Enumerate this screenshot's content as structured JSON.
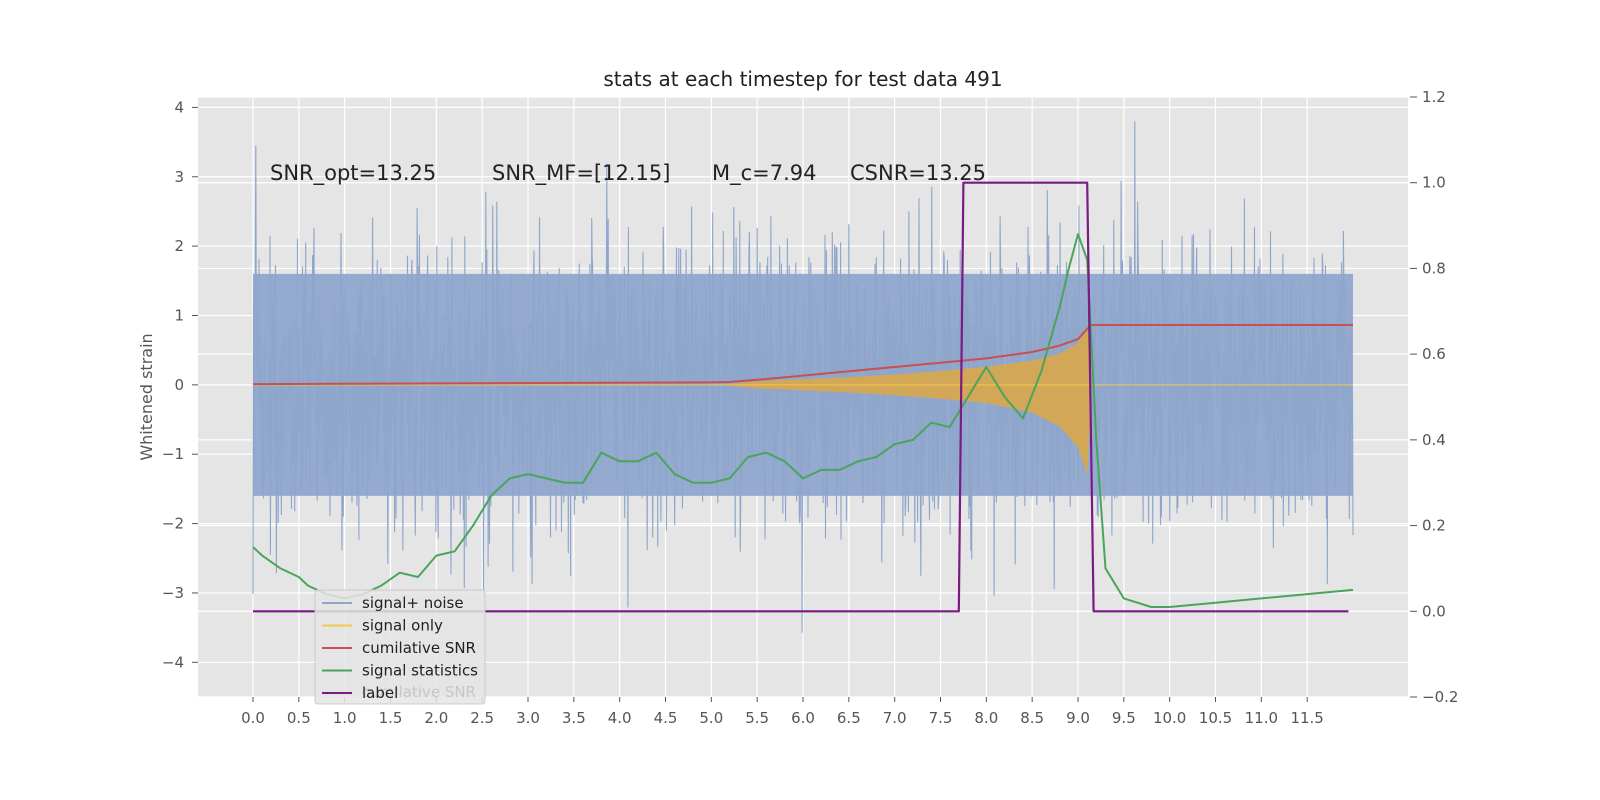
{
  "chart_data": {
    "type": "line",
    "title": "stats at each timestep for test data 491",
    "xlabel": "",
    "ylabel": "Whitened strain",
    "y2label": "",
    "xlim": [
      -0.6,
      12.6
    ],
    "ylim": [
      -4.5,
      4.15
    ],
    "y2lim": [
      -0.2,
      1.2
    ],
    "grid": true,
    "x_ticks": [
      0.0,
      0.5,
      1.0,
      1.5,
      2.0,
      2.5,
      3.0,
      3.5,
      4.0,
      4.5,
      5.0,
      5.5,
      6.0,
      6.5,
      7.0,
      7.5,
      8.0,
      8.5,
      9.0,
      9.5,
      10.0,
      10.5,
      11.0,
      11.5
    ],
    "x_tick_labels": [
      "0.0",
      "0.5",
      "1.0",
      "1.5",
      "2.0",
      "2.5",
      "3.0",
      "3.5",
      "4.0",
      "4.5",
      "5.0",
      "5.5",
      "6.0",
      "6.5",
      "7.0",
      "7.5",
      "8.0",
      "8.5",
      "9.0",
      "9.5",
      "10.0",
      "10.5",
      "11.0",
      "11.5"
    ],
    "y_ticks": [
      -4,
      -3,
      -2,
      -1,
      0,
      1,
      2,
      3,
      4
    ],
    "y_tick_labels": [
      "−4",
      "−3",
      "−2",
      "−1",
      "0",
      "1",
      "2",
      "3",
      "4"
    ],
    "y2_ticks": [
      -0.2,
      0.0,
      0.2,
      0.4,
      0.6,
      0.8,
      1.0,
      1.2
    ],
    "y2_tick_labels": [
      "−0.2",
      "0.0",
      "0.2",
      "0.4",
      "0.6",
      "0.8",
      "1.0",
      "1.2"
    ],
    "annotations": {
      "snr_opt": "SNR_opt=13.25",
      "snr_mf": "SNR_MF=[12.15]",
      "mc": "M_c=7.94",
      "csnr": "CSNR=13.25"
    },
    "legend": {
      "position": "lower-left",
      "entries": [
        "signal+ noise",
        "signal only",
        "cumilative SNR",
        "signal statistics",
        "label"
      ],
      "ghost_text": "cumilative SNR"
    },
    "colors": {
      "noise": "#8fa6cc",
      "signal": "#d9a74a",
      "signal_line": "#f2c84b",
      "cumulative": "#c9504f",
      "statistics": "#4aa55a",
      "label": "#7a1a84",
      "grid": "#ffffff",
      "plot_bg": "#e5e5e5",
      "tick": "#555555"
    },
    "series": [
      {
        "name": "signal+ noise",
        "axis": "left",
        "style": "dense noise band",
        "x_range": [
          0.0,
          12.0
        ],
        "envelope_core": [
          -1.6,
          1.6
        ],
        "spike_range": [
          -4.1,
          3.8
        ]
      },
      {
        "name": "signal only",
        "axis": "left",
        "style": "chirp envelope",
        "x": [
          0.0,
          5.1,
          5.5,
          6.0,
          6.5,
          7.0,
          7.5,
          8.0,
          8.5,
          8.8,
          9.0,
          9.1,
          9.15,
          12.0
        ],
        "upper": [
          0.0,
          0.0,
          0.05,
          0.08,
          0.11,
          0.15,
          0.2,
          0.26,
          0.35,
          0.45,
          0.6,
          0.85,
          0.0,
          0.0
        ],
        "lower": [
          0.0,
          0.0,
          -0.05,
          -0.08,
          -0.11,
          -0.15,
          -0.2,
          -0.26,
          -0.4,
          -0.6,
          -0.9,
          -1.3,
          0.0,
          0.0
        ]
      },
      {
        "name": "cumilative SNR",
        "axis": "right",
        "x": [
          0.0,
          5.0,
          5.2,
          5.6,
          6.0,
          6.5,
          7.0,
          7.5,
          8.0,
          8.5,
          8.8,
          9.0,
          9.14,
          12.0
        ],
        "values": [
          0.53,
          0.534,
          0.535,
          0.542,
          0.55,
          0.56,
          0.57,
          0.58,
          0.59,
          0.605,
          0.62,
          0.635,
          0.668,
          0.668
        ]
      },
      {
        "name": "signal statistics",
        "axis": "right",
        "x": [
          0.0,
          0.1,
          0.3,
          0.5,
          0.6,
          0.8,
          1.0,
          1.2,
          1.4,
          1.6,
          1.8,
          2.0,
          2.2,
          2.4,
          2.6,
          2.8,
          3.0,
          3.2,
          3.4,
          3.6,
          3.8,
          4.0,
          4.2,
          4.4,
          4.6,
          4.8,
          5.0,
          5.2,
          5.4,
          5.6,
          5.8,
          6.0,
          6.2,
          6.4,
          6.6,
          6.8,
          7.0,
          7.2,
          7.4,
          7.6,
          7.8,
          8.0,
          8.2,
          8.4,
          8.6,
          8.8,
          8.9,
          9.0,
          9.1,
          9.2,
          9.3,
          9.5,
          9.8,
          10.0,
          10.5,
          11.0,
          11.5,
          12.0
        ],
        "values": [
          0.15,
          0.13,
          0.1,
          0.08,
          0.06,
          0.04,
          0.03,
          0.04,
          0.06,
          0.09,
          0.08,
          0.13,
          0.14,
          0.2,
          0.27,
          0.31,
          0.32,
          0.31,
          0.3,
          0.3,
          0.37,
          0.35,
          0.35,
          0.37,
          0.32,
          0.3,
          0.3,
          0.31,
          0.36,
          0.37,
          0.35,
          0.31,
          0.33,
          0.33,
          0.35,
          0.36,
          0.39,
          0.4,
          0.44,
          0.43,
          0.5,
          0.57,
          0.5,
          0.45,
          0.56,
          0.71,
          0.8,
          0.88,
          0.82,
          0.4,
          0.1,
          0.03,
          0.01,
          0.01,
          0.02,
          0.03,
          0.04,
          0.05
        ]
      },
      {
        "name": "label",
        "axis": "right",
        "x": [
          0.0,
          7.7,
          7.75,
          9.1,
          9.17,
          11.95
        ],
        "values": [
          0.0,
          0.0,
          1.0,
          1.0,
          0.0,
          0.0
        ]
      }
    ]
  }
}
